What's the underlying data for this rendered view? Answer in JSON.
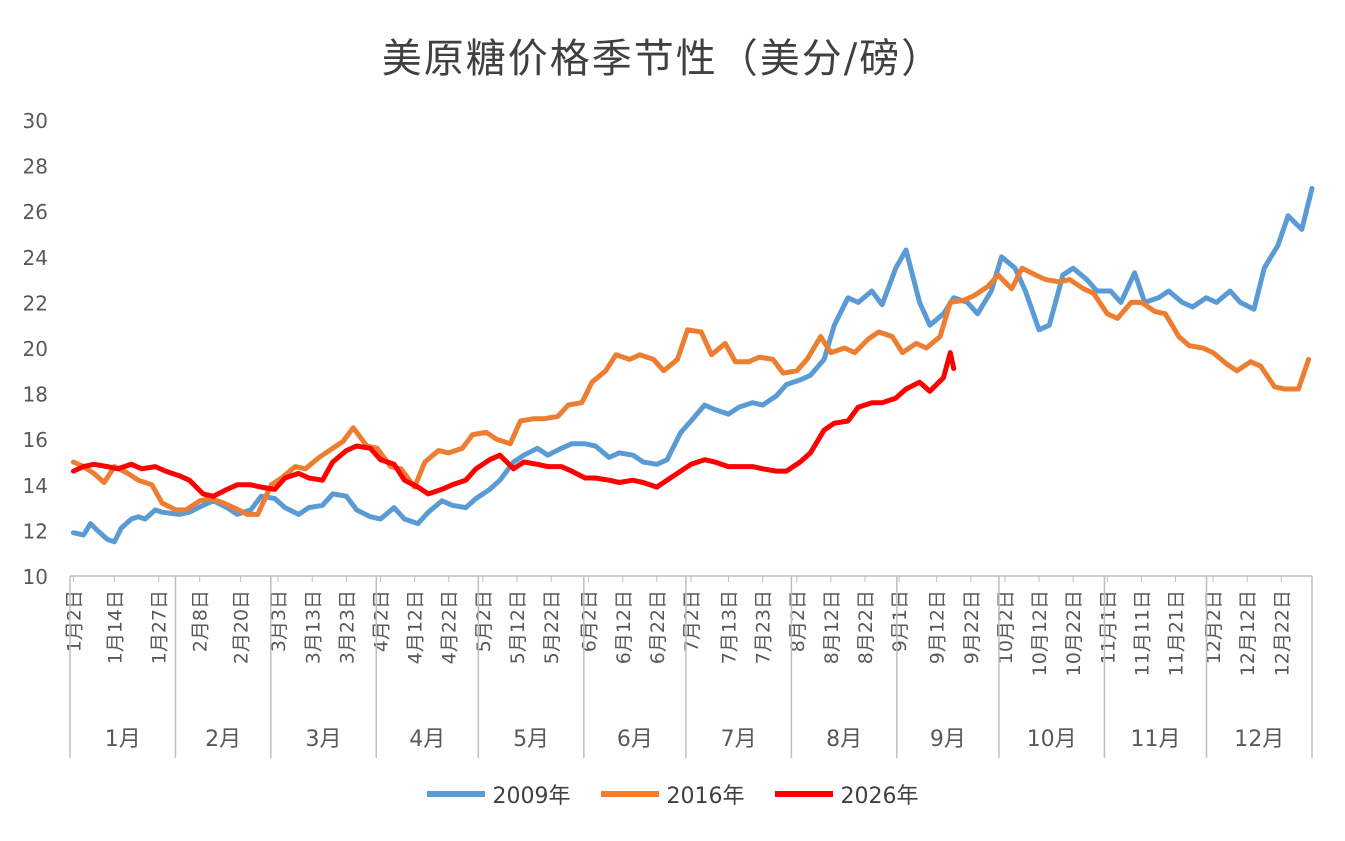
{
  "chart_data": {
    "type": "line",
    "title": "美原糖价格季节性（美分/磅）",
    "xlabel": "",
    "ylabel": "",
    "ylim": [
      10,
      30
    ],
    "yticks": [
      10,
      12,
      14,
      16,
      18,
      20,
      22,
      24,
      26,
      28,
      30
    ],
    "grid": false,
    "legend_position": "bottom",
    "months": [
      "1月",
      "2月",
      "3月",
      "4月",
      "5月",
      "6月",
      "7月",
      "8月",
      "9月",
      "10月",
      "11月",
      "12月"
    ],
    "x_tick_labels": [
      "1月2日",
      "1月14日",
      "1月27日",
      "2月8日",
      "2月20日",
      "3月3日",
      "3月13日",
      "3月23日",
      "4月2日",
      "4月12日",
      "4月22日",
      "5月2日",
      "5月12日",
      "5月22日",
      "6月2日",
      "6月12日",
      "6月22日",
      "7月2日",
      "7月13日",
      "7月23日",
      "8月2日",
      "8月12日",
      "8月22日",
      "9月1日",
      "9月12日",
      "9月22日",
      "10月2日",
      "10月12日",
      "10月22日",
      "11月1日",
      "11月11日",
      "11月21日",
      "12月2日",
      "12月12日",
      "12月22日"
    ],
    "series": [
      {
        "name": "2009年",
        "color": "#5B9BD5",
        "points": [
          [
            "1/2",
            11.9
          ],
          [
            "1/5",
            11.8
          ],
          [
            "1/7",
            12.3
          ],
          [
            "1/9",
            12.0
          ],
          [
            "1/12",
            11.6
          ],
          [
            "1/14",
            11.5
          ],
          [
            "1/16",
            12.1
          ],
          [
            "1/19",
            12.5
          ],
          [
            "1/21",
            12.6
          ],
          [
            "1/23",
            12.5
          ],
          [
            "1/26",
            12.9
          ],
          [
            "1/28",
            12.8
          ],
          [
            "2/2",
            12.7
          ],
          [
            "2/5",
            12.8
          ],
          [
            "2/9",
            13.1
          ],
          [
            "2/12",
            13.3
          ],
          [
            "2/16",
            13.0
          ],
          [
            "2/19",
            12.7
          ],
          [
            "2/23",
            12.9
          ],
          [
            "2/26",
            13.5
          ],
          [
            "3/2",
            13.4
          ],
          [
            "3/5",
            13.0
          ],
          [
            "3/9",
            12.7
          ],
          [
            "3/12",
            13.0
          ],
          [
            "3/16",
            13.1
          ],
          [
            "3/19",
            13.6
          ],
          [
            "3/23",
            13.5
          ],
          [
            "3/26",
            12.9
          ],
          [
            "3/30",
            12.6
          ],
          [
            "4/2",
            12.5
          ],
          [
            "4/6",
            13.0
          ],
          [
            "4/9",
            12.5
          ],
          [
            "4/13",
            12.3
          ],
          [
            "4/16",
            12.8
          ],
          [
            "4/20",
            13.3
          ],
          [
            "4/23",
            13.1
          ],
          [
            "4/27",
            13.0
          ],
          [
            "4/30",
            13.4
          ],
          [
            "5/4",
            13.8
          ],
          [
            "5/7",
            14.2
          ],
          [
            "5/11",
            15.0
          ],
          [
            "5/14",
            15.3
          ],
          [
            "5/18",
            15.6
          ],
          [
            "5/21",
            15.3
          ],
          [
            "5/25",
            15.6
          ],
          [
            "5/28",
            15.8
          ],
          [
            "6/1",
            15.8
          ],
          [
            "6/4",
            15.7
          ],
          [
            "6/8",
            15.2
          ],
          [
            "6/11",
            15.4
          ],
          [
            "6/15",
            15.3
          ],
          [
            "6/18",
            15.0
          ],
          [
            "6/22",
            14.9
          ],
          [
            "6/25",
            15.1
          ],
          [
            "6/29",
            16.3
          ],
          [
            "7/2",
            16.8
          ],
          [
            "7/6",
            17.5
          ],
          [
            "7/9",
            17.3
          ],
          [
            "7/13",
            17.1
          ],
          [
            "7/16",
            17.4
          ],
          [
            "7/20",
            17.6
          ],
          [
            "7/23",
            17.5
          ],
          [
            "7/27",
            17.9
          ],
          [
            "7/30",
            18.4
          ],
          [
            "8/3",
            18.6
          ],
          [
            "8/6",
            18.8
          ],
          [
            "8/10",
            19.5
          ],
          [
            "8/13",
            21.0
          ],
          [
            "8/17",
            22.2
          ],
          [
            "8/20",
            22.0
          ],
          [
            "8/24",
            22.5
          ],
          [
            "8/27",
            21.9
          ],
          [
            "8/31",
            23.5
          ],
          [
            "9/3",
            24.3
          ],
          [
            "9/7",
            22.0
          ],
          [
            "9/10",
            21.0
          ],
          [
            "9/14",
            21.5
          ],
          [
            "9/17",
            22.2
          ],
          [
            "9/21",
            22.0
          ],
          [
            "9/24",
            21.5
          ],
          [
            "9/28",
            22.5
          ],
          [
            "10/1",
            24.0
          ],
          [
            "10/5",
            23.5
          ],
          [
            "10/8",
            22.5
          ],
          [
            "10/12",
            20.8
          ],
          [
            "10/15",
            21.0
          ],
          [
            "10/19",
            23.2
          ],
          [
            "10/22",
            23.5
          ],
          [
            "10/26",
            23.0
          ],
          [
            "10/29",
            22.5
          ],
          [
            "11/2",
            22.5
          ],
          [
            "11/5",
            22.0
          ],
          [
            "11/9",
            23.3
          ],
          [
            "11/12",
            22.0
          ],
          [
            "11/16",
            22.2
          ],
          [
            "11/19",
            22.5
          ],
          [
            "11/23",
            22.0
          ],
          [
            "11/26",
            21.8
          ],
          [
            "11/30",
            22.2
          ],
          [
            "12/3",
            22.0
          ],
          [
            "12/7",
            22.5
          ],
          [
            "12/10",
            22.0
          ],
          [
            "12/14",
            21.7
          ],
          [
            "12/17",
            23.5
          ],
          [
            "12/21",
            24.5
          ],
          [
            "12/24",
            25.8
          ],
          [
            "12/28",
            25.2
          ],
          [
            "12/31",
            27.0
          ]
        ]
      },
      {
        "name": "2016年",
        "color": "#ED7D31",
        "points": [
          [
            "1/2",
            15.0
          ],
          [
            "1/5",
            14.8
          ],
          [
            "1/8",
            14.5
          ],
          [
            "1/11",
            14.1
          ],
          [
            "1/14",
            14.8
          ],
          [
            "1/18",
            14.5
          ],
          [
            "1/21",
            14.2
          ],
          [
            "1/25",
            14.0
          ],
          [
            "1/28",
            13.2
          ],
          [
            "2/1",
            12.9
          ],
          [
            "2/4",
            12.9
          ],
          [
            "2/8",
            13.3
          ],
          [
            "2/11",
            13.4
          ],
          [
            "2/15",
            13.2
          ],
          [
            "2/18",
            13.0
          ],
          [
            "2/22",
            12.7
          ],
          [
            "2/25",
            12.7
          ],
          [
            "3/1",
            14.0
          ],
          [
            "3/4",
            14.3
          ],
          [
            "3/8",
            14.8
          ],
          [
            "3/11",
            14.7
          ],
          [
            "3/15",
            15.2
          ],
          [
            "3/18",
            15.5
          ],
          [
            "3/22",
            15.9
          ],
          [
            "3/25",
            16.5
          ],
          [
            "3/29",
            15.7
          ],
          [
            "4/1",
            15.6
          ],
          [
            "4/5",
            14.8
          ],
          [
            "4/8",
            14.7
          ],
          [
            "4/12",
            13.9
          ],
          [
            "4/15",
            15.0
          ],
          [
            "4/19",
            15.5
          ],
          [
            "4/22",
            15.4
          ],
          [
            "4/26",
            15.6
          ],
          [
            "4/29",
            16.2
          ],
          [
            "5/3",
            16.3
          ],
          [
            "5/6",
            16.0
          ],
          [
            "5/10",
            15.8
          ],
          [
            "5/13",
            16.8
          ],
          [
            "5/17",
            16.9
          ],
          [
            "5/20",
            16.9
          ],
          [
            "5/24",
            17.0
          ],
          [
            "5/27",
            17.5
          ],
          [
            "5/31",
            17.6
          ],
          [
            "6/3",
            18.5
          ],
          [
            "6/7",
            19.0
          ],
          [
            "6/10",
            19.7
          ],
          [
            "6/14",
            19.5
          ],
          [
            "6/17",
            19.7
          ],
          [
            "6/21",
            19.5
          ],
          [
            "6/24",
            19.0
          ],
          [
            "6/28",
            19.5
          ],
          [
            "7/1",
            20.8
          ],
          [
            "7/5",
            20.7
          ],
          [
            "7/8",
            19.7
          ],
          [
            "7/12",
            20.2
          ],
          [
            "7/15",
            19.4
          ],
          [
            "7/19",
            19.4
          ],
          [
            "7/22",
            19.6
          ],
          [
            "7/26",
            19.5
          ],
          [
            "7/29",
            18.9
          ],
          [
            "8/2",
            19.0
          ],
          [
            "8/5",
            19.5
          ],
          [
            "8/9",
            20.5
          ],
          [
            "8/12",
            19.8
          ],
          [
            "8/16",
            20.0
          ],
          [
            "8/19",
            19.8
          ],
          [
            "8/23",
            20.4
          ],
          [
            "8/26",
            20.7
          ],
          [
            "8/30",
            20.5
          ],
          [
            "9/2",
            19.8
          ],
          [
            "9/6",
            20.2
          ],
          [
            "9/9",
            20.0
          ],
          [
            "9/13",
            20.5
          ],
          [
            "9/16",
            22.0
          ],
          [
            "9/20",
            22.1
          ],
          [
            "9/23",
            22.3
          ],
          [
            "9/27",
            22.7
          ],
          [
            "9/30",
            23.2
          ],
          [
            "10/4",
            22.6
          ],
          [
            "10/7",
            23.5
          ],
          [
            "10/11",
            23.2
          ],
          [
            "10/14",
            23.0
          ],
          [
            "10/18",
            22.9
          ],
          [
            "10/21",
            23.0
          ],
          [
            "10/25",
            22.6
          ],
          [
            "10/28",
            22.4
          ],
          [
            "11/1",
            21.5
          ],
          [
            "11/4",
            21.3
          ],
          [
            "11/8",
            22.0
          ],
          [
            "11/11",
            22.0
          ],
          [
            "11/15",
            21.6
          ],
          [
            "11/18",
            21.5
          ],
          [
            "11/22",
            20.5
          ],
          [
            "11/25",
            20.1
          ],
          [
            "11/29",
            20.0
          ],
          [
            "12/2",
            19.8
          ],
          [
            "12/6",
            19.3
          ],
          [
            "12/9",
            19.0
          ],
          [
            "12/13",
            19.4
          ],
          [
            "12/16",
            19.2
          ],
          [
            "12/20",
            18.3
          ],
          [
            "12/23",
            18.2
          ],
          [
            "12/27",
            18.2
          ],
          [
            "12/30",
            19.5
          ]
        ]
      },
      {
        "name": "2026年",
        "color": "#FF0000",
        "points": [
          [
            "1/2",
            14.6
          ],
          [
            "1/5",
            14.8
          ],
          [
            "1/8",
            14.9
          ],
          [
            "1/12",
            14.8
          ],
          [
            "1/15",
            14.7
          ],
          [
            "1/19",
            14.9
          ],
          [
            "1/22",
            14.7
          ],
          [
            "1/26",
            14.8
          ],
          [
            "1/29",
            14.6
          ],
          [
            "2/2",
            14.4
          ],
          [
            "2/5",
            14.2
          ],
          [
            "2/9",
            13.6
          ],
          [
            "2/12",
            13.5
          ],
          [
            "2/16",
            13.8
          ],
          [
            "2/19",
            14.0
          ],
          [
            "2/23",
            14.0
          ],
          [
            "2/26",
            13.9
          ],
          [
            "3/2",
            13.8
          ],
          [
            "3/5",
            14.3
          ],
          [
            "3/9",
            14.5
          ],
          [
            "3/12",
            14.3
          ],
          [
            "3/16",
            14.2
          ],
          [
            "3/19",
            15.0
          ],
          [
            "3/23",
            15.5
          ],
          [
            "3/26",
            15.7
          ],
          [
            "3/30",
            15.6
          ],
          [
            "4/2",
            15.1
          ],
          [
            "4/6",
            14.9
          ],
          [
            "4/9",
            14.2
          ],
          [
            "4/13",
            13.9
          ],
          [
            "4/16",
            13.6
          ],
          [
            "4/20",
            13.8
          ],
          [
            "4/23",
            14.0
          ],
          [
            "4/27",
            14.2
          ],
          [
            "4/30",
            14.7
          ],
          [
            "5/4",
            15.1
          ],
          [
            "5/7",
            15.3
          ],
          [
            "5/11",
            14.7
          ],
          [
            "5/14",
            15.0
          ],
          [
            "5/18",
            14.9
          ],
          [
            "5/21",
            14.8
          ],
          [
            "5/25",
            14.8
          ],
          [
            "5/28",
            14.6
          ],
          [
            "6/1",
            14.3
          ],
          [
            "6/4",
            14.3
          ],
          [
            "6/8",
            14.2
          ],
          [
            "6/11",
            14.1
          ],
          [
            "6/15",
            14.2
          ],
          [
            "6/18",
            14.1
          ],
          [
            "6/22",
            13.9
          ],
          [
            "6/25",
            14.2
          ],
          [
            "6/29",
            14.6
          ],
          [
            "7/2",
            14.9
          ],
          [
            "7/6",
            15.1
          ],
          [
            "7/9",
            15.0
          ],
          [
            "7/13",
            14.8
          ],
          [
            "7/16",
            14.8
          ],
          [
            "7/20",
            14.8
          ],
          [
            "7/23",
            14.7
          ],
          [
            "7/27",
            14.6
          ],
          [
            "7/30",
            14.6
          ],
          [
            "8/3",
            15.0
          ],
          [
            "8/6",
            15.4
          ],
          [
            "8/10",
            16.4
          ],
          [
            "8/13",
            16.7
          ],
          [
            "8/17",
            16.8
          ],
          [
            "8/20",
            17.4
          ],
          [
            "8/24",
            17.6
          ],
          [
            "8/27",
            17.6
          ],
          [
            "8/31",
            17.8
          ],
          [
            "9/3",
            18.2
          ],
          [
            "9/7",
            18.5
          ],
          [
            "9/10",
            18.1
          ],
          [
            "9/14",
            18.7
          ],
          [
            "9/16",
            19.8
          ],
          [
            "9/17",
            19.1
          ]
        ]
      }
    ]
  }
}
